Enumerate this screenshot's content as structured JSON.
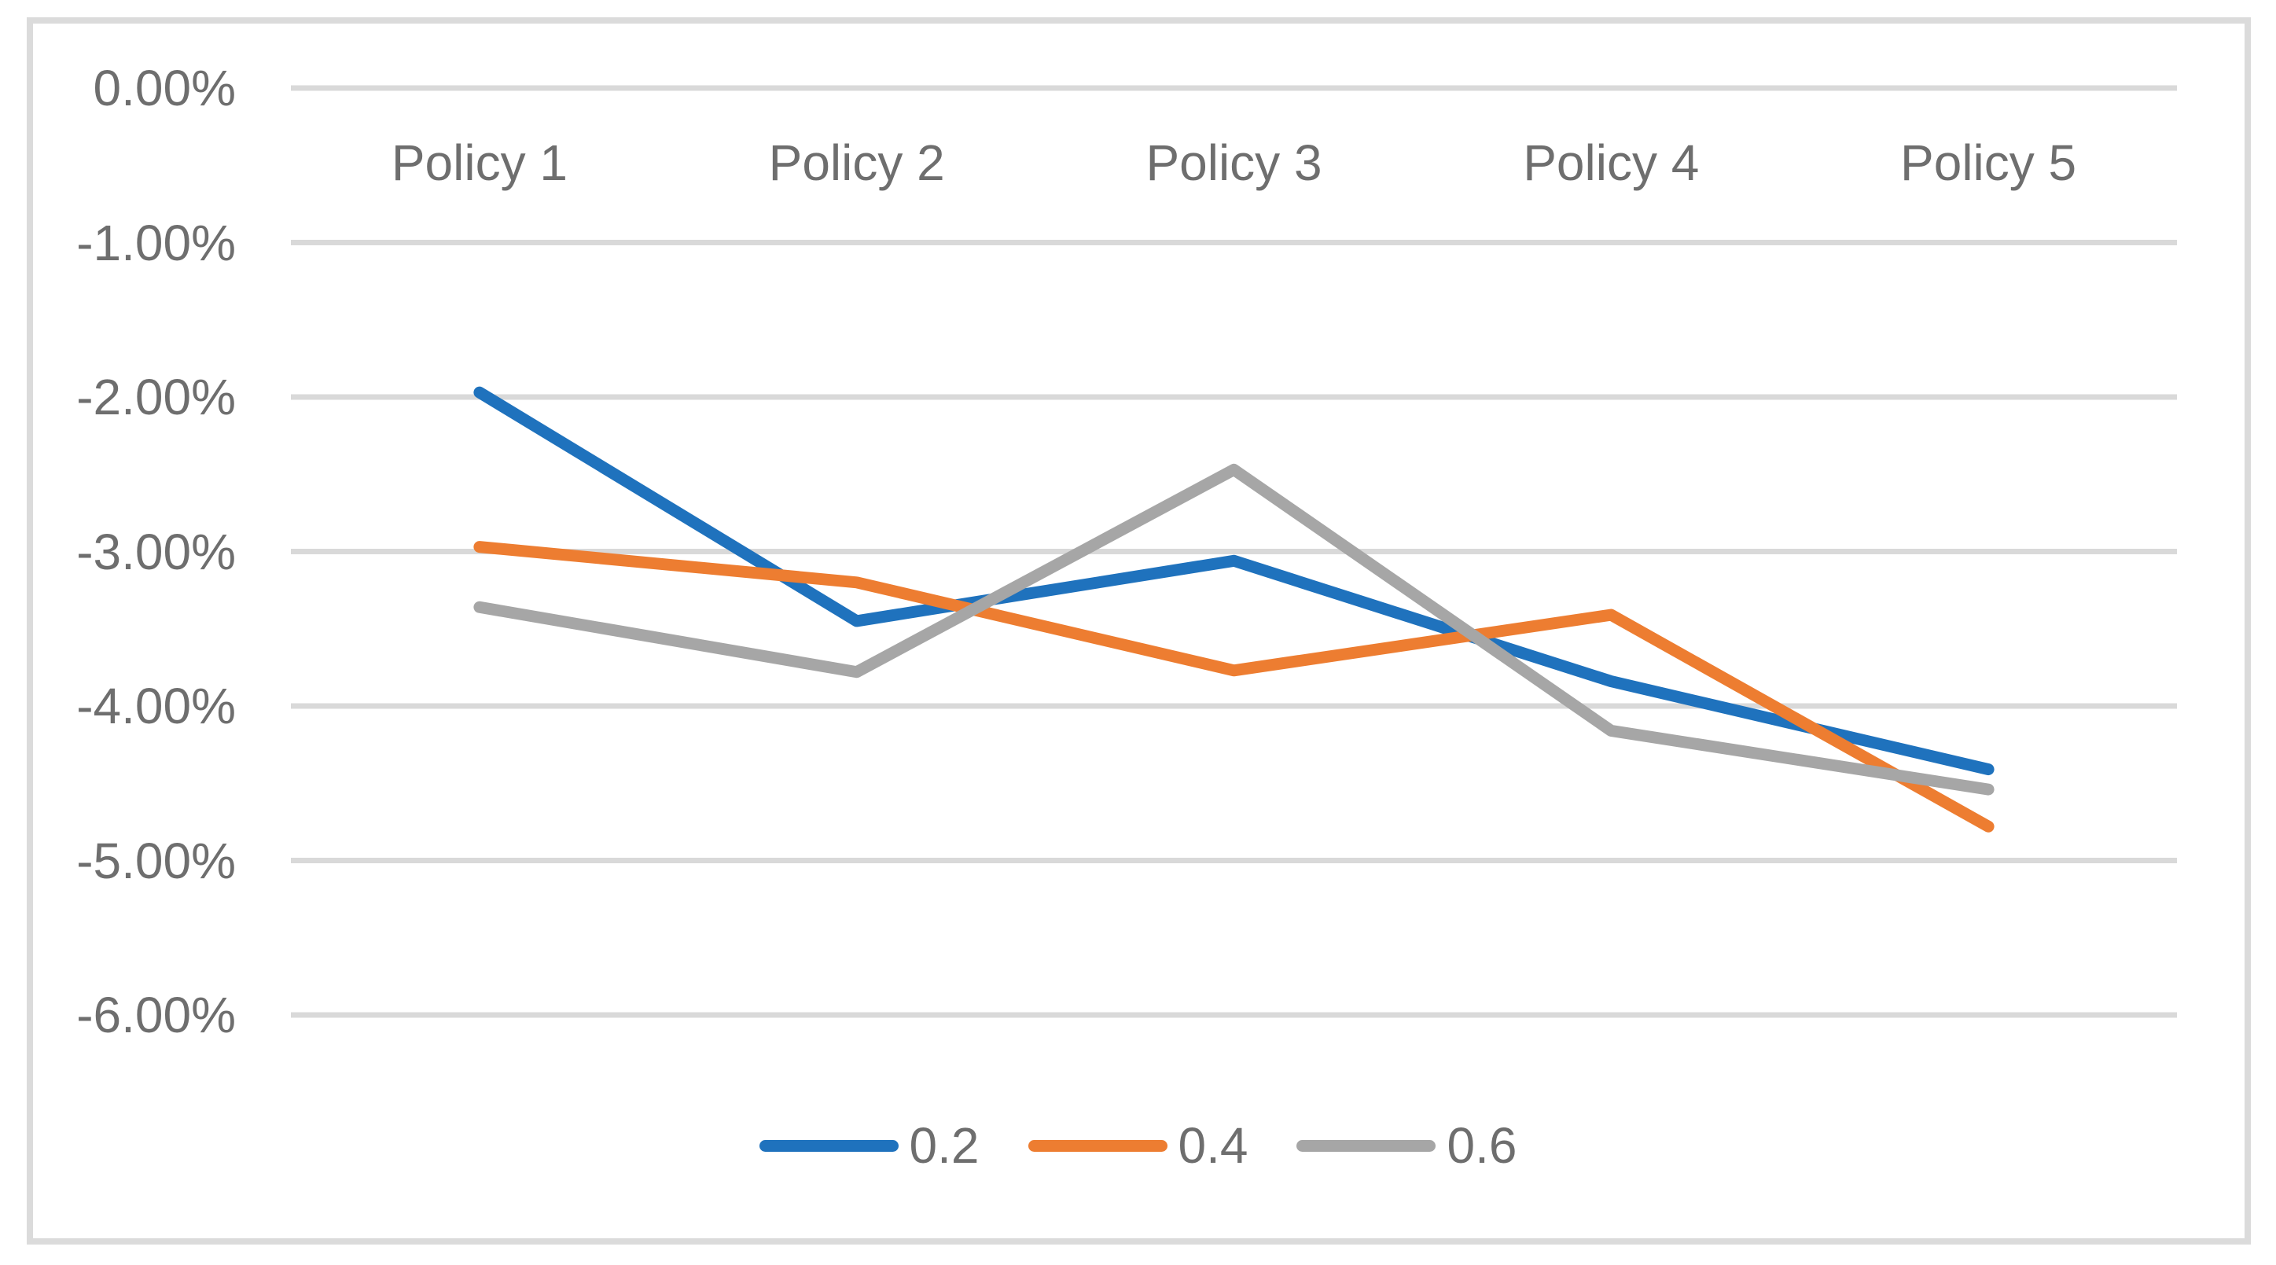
{
  "chart_data": {
    "type": "line",
    "title": "",
    "xlabel": "",
    "ylabel": "",
    "categories": [
      "Policy 1",
      "Policy 2",
      "Policy 3",
      "Policy 4",
      "Policy 5"
    ],
    "series": [
      {
        "name": "0.2",
        "color": "#1F72BD",
        "values": [
          -1.97,
          -3.45,
          -3.06,
          -3.84,
          -4.41
        ]
      },
      {
        "name": "0.4",
        "color": "#ED7D31",
        "values": [
          -2.97,
          -3.2,
          -3.77,
          -3.41,
          -4.78
        ]
      },
      {
        "name": "0.6",
        "color": "#A6A6A6",
        "values": [
          -3.36,
          -3.78,
          -2.47,
          -4.16,
          -4.54
        ]
      }
    ],
    "y_ticks": [
      "0.00%",
      "-1.00%",
      "-2.00%",
      "-3.00%",
      "-4.00%",
      "-5.00%",
      "-6.00%"
    ],
    "ylim": [
      -6,
      0
    ],
    "y_step": 1,
    "grid": true,
    "legend_position": "bottom-center",
    "category_labels_position": "top-inside"
  },
  "colors": {
    "background": "#FFFFFF",
    "frame_border": "#DBDBDB",
    "gridline": "#D9D9D9",
    "label_text": "#6E6E6E"
  }
}
